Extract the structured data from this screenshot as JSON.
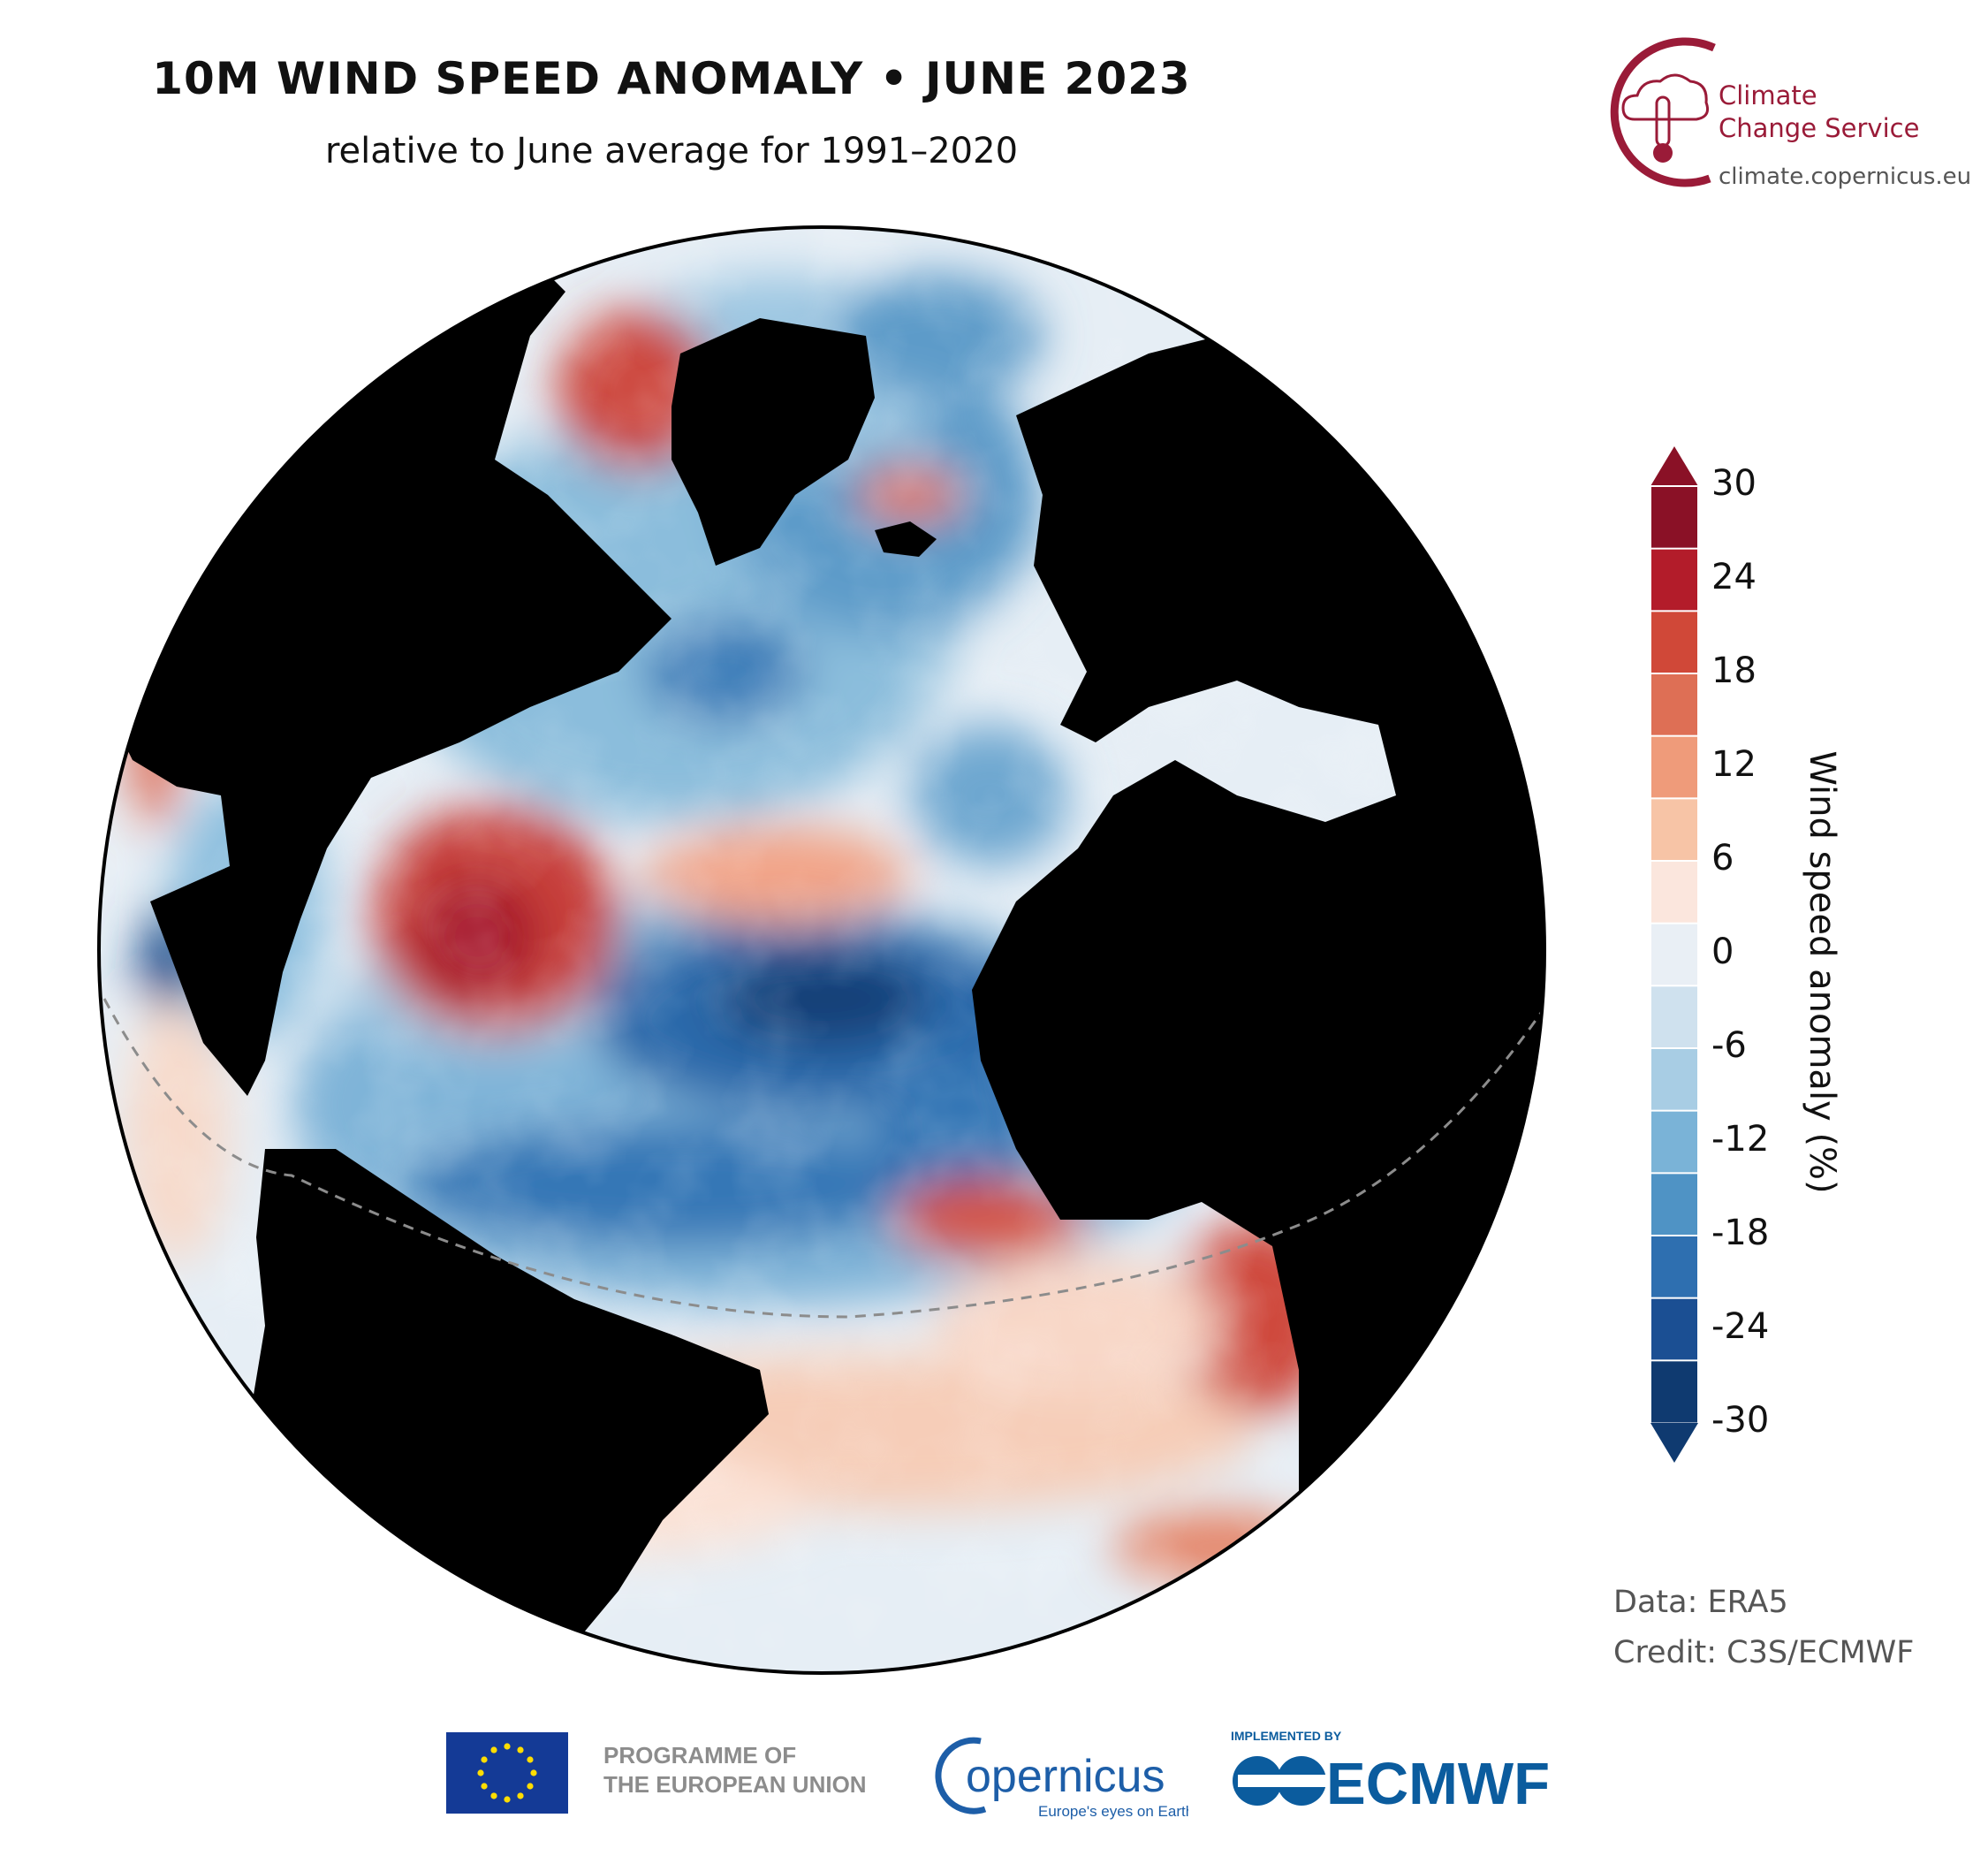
{
  "header": {
    "title": "10M WIND SPEED ANOMALY • JUNE 2023",
    "subtitle": "relative to June average for 1991–2020"
  },
  "brand": {
    "name_line1": "Climate",
    "name_line2": "Change Service",
    "url": "climate.copernicus.eu",
    "color": "#9a1b38"
  },
  "map": {
    "projection": "orthographic",
    "centered_on": "North Atlantic Ocean",
    "land_color": "#000000",
    "reference_lines": [
      "dashed equator"
    ]
  },
  "colorbar": {
    "title": "Wind speed anomaly (%)",
    "ticks": [
      "30",
      "24",
      "18",
      "12",
      "6",
      "0",
      "-6",
      "-12",
      "-18",
      "-24",
      "-30"
    ],
    "colors_top_to_bottom": [
      "#8a1126",
      "#b31c2a",
      "#d04838",
      "#de6f55",
      "#ef9b7a",
      "#f7c4a6",
      "#fbe6dd",
      "#e9eff5",
      "#cfe1ee",
      "#a8cde4",
      "#7ab3d7",
      "#4f93c5",
      "#2e6fb0",
      "#1b4f93",
      "#0f3a70"
    ],
    "extend": "both"
  },
  "credits": {
    "data": "Data: ERA5",
    "credit": "Credit: C3S/ECMWF"
  },
  "footer": {
    "programme_line1": "PROGRAMME OF",
    "programme_line2": "THE EUROPEAN UNION",
    "copernicus_name": "opernicus",
    "copernicus_tagline": "Europe's eyes on Earth",
    "implemented_by": "IMPLEMENTED BY",
    "ecmwf": "ECMWF"
  }
}
